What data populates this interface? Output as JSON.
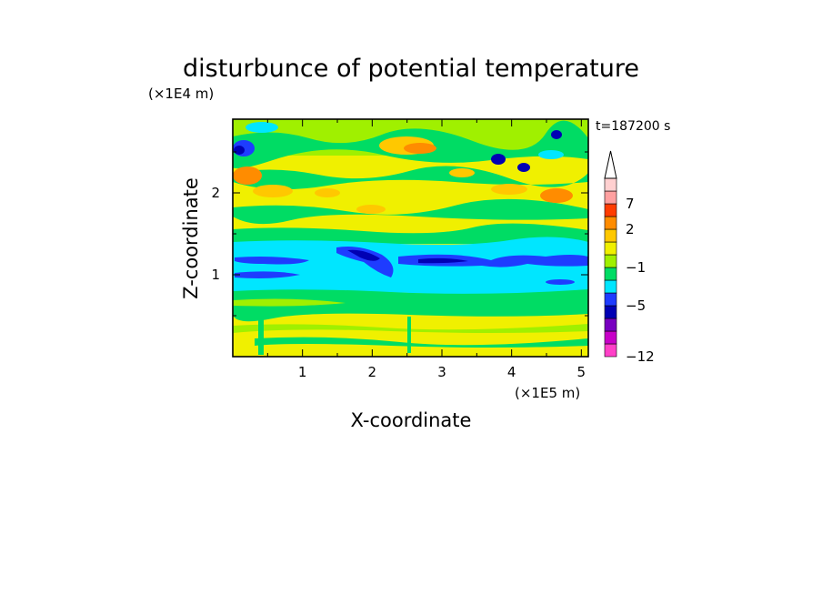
{
  "chart_data": {
    "type": "heatmap",
    "title": "disturbunce of potential temperature",
    "xlabel": "X-coordinate",
    "ylabel": "Z-coordinate",
    "x_unit": "(×1E5 m)",
    "y_unit": "(×1E4 m)",
    "time_label": "t=187200 s",
    "xlim": [
      0,
      5.1
    ],
    "ylim": [
      0,
      2.9
    ],
    "x_ticks": [
      1,
      2,
      3,
      4,
      5
    ],
    "y_ticks": [
      1,
      2
    ],
    "colorbar": {
      "extend": "max",
      "labels": [
        {
          "level": 7,
          "text": "7"
        },
        {
          "level": 2,
          "text": "2"
        },
        {
          "level": -1,
          "text": "−1"
        },
        {
          "level": -5,
          "text": "−5"
        },
        {
          "level": -12,
          "text": "−12"
        }
      ],
      "colors": [
        "#ff40c8",
        "#c800c8",
        "#7800c0",
        "#0000b4",
        "#1e3cff",
        "#00e6ff",
        "#00dc64",
        "#a0f000",
        "#f0f000",
        "#ffc800",
        "#ff8c00",
        "#ff3c00",
        "#ffa0a0",
        "#ffd0d0"
      ],
      "overflow_color": "#ffffff"
    },
    "field_bands": [
      {
        "z_range": [
          2.45,
          2.9
        ],
        "dominant": "green / yellow with orange and blue patches"
      },
      {
        "z_range": [
          1.5,
          2.45
        ],
        "dominant": "yellow / green with orange patches"
      },
      {
        "z_range": [
          0.65,
          1.5
        ],
        "dominant": "cyan with a dark-blue filament near z=1.15"
      },
      {
        "z_range": [
          0.4,
          0.65
        ],
        "dominant": "green"
      },
      {
        "z_range": [
          0,
          0.4
        ],
        "dominant": "yellow with green streaks"
      }
    ]
  }
}
